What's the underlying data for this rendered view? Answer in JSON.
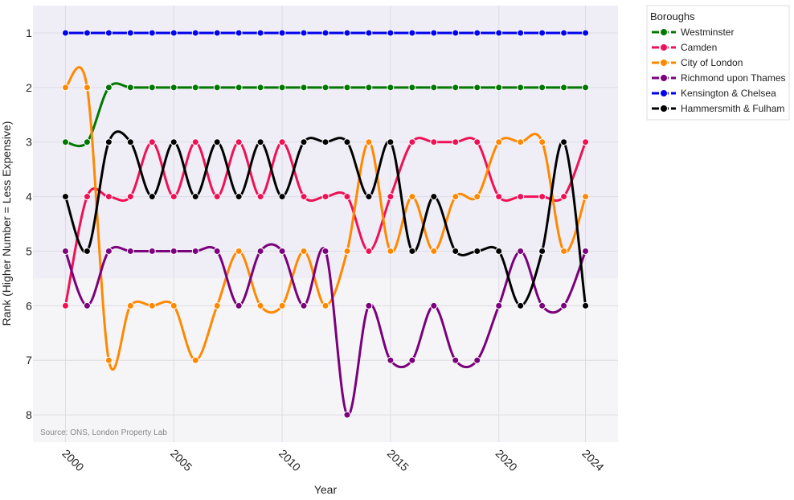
{
  "chart_data": {
    "type": "line",
    "xlabel": "Year",
    "ylabel": "Rank (Higher Number = Less Expensive)",
    "x": [
      2000,
      2001,
      2002,
      2003,
      2004,
      2005,
      2006,
      2007,
      2008,
      2009,
      2010,
      2011,
      2012,
      2013,
      2014,
      2015,
      2016,
      2017,
      2018,
      2019,
      2020,
      2021,
      2022,
      2023,
      2024
    ],
    "xticks": [
      "2000",
      "2005",
      "2010",
      "2015",
      "2020",
      "2024"
    ],
    "yticks": [
      "1",
      "2",
      "3",
      "4",
      "5",
      "6",
      "7",
      "8"
    ],
    "ylim": [
      8.5,
      0.5
    ],
    "y_reversed": true,
    "grid": true,
    "shaded_band": {
      "from_rank": 0.5,
      "to_rank": 5.5,
      "color": "#efeef6"
    },
    "background": "#f5f5f7",
    "source_note": "Source: ONS, London Property Lab",
    "legend": {
      "title": "Boroughs",
      "placement": "right"
    },
    "series": [
      {
        "name": "Westminster",
        "color": "#007700",
        "values": [
          3,
          3,
          2,
          2,
          2,
          2,
          2,
          2,
          2,
          2,
          2,
          2,
          2,
          2,
          2,
          2,
          2,
          2,
          2,
          2,
          2,
          2,
          2,
          2,
          2
        ]
      },
      {
        "name": "Camden",
        "color": "#ee1155",
        "values": [
          6,
          4,
          4,
          4,
          3,
          4,
          3,
          4,
          3,
          4,
          3,
          4,
          4,
          4,
          5,
          4,
          3,
          3,
          3,
          3,
          4,
          4,
          4,
          4,
          3
        ]
      },
      {
        "name": "City of London",
        "color": "#ff8800",
        "values": [
          2,
          2,
          7,
          6,
          6,
          6,
          7,
          6,
          5,
          6,
          6,
          5,
          6,
          5,
          3,
          5,
          4,
          5,
          4,
          4,
          3,
          3,
          3,
          5,
          4
        ]
      },
      {
        "name": "Richmond upon Thames",
        "color": "#7b007b",
        "values": [
          5,
          6,
          5,
          5,
          5,
          5,
          5,
          5,
          6,
          5,
          5,
          6,
          5,
          8,
          6,
          7,
          7,
          6,
          7,
          7,
          6,
          5,
          6,
          6,
          5
        ]
      },
      {
        "name": "Kensington & Chelsea",
        "color": "#0000ee",
        "values": [
          1,
          1,
          1,
          1,
          1,
          1,
          1,
          1,
          1,
          1,
          1,
          1,
          1,
          1,
          1,
          1,
          1,
          1,
          1,
          1,
          1,
          1,
          1,
          1,
          1
        ]
      },
      {
        "name": "Hammersmith & Fulham",
        "color": "#000000",
        "values": [
          4,
          5,
          3,
          3,
          4,
          3,
          4,
          3,
          4,
          3,
          4,
          3,
          3,
          3,
          4,
          3,
          5,
          4,
          5,
          5,
          5,
          6,
          5,
          3,
          6
        ]
      }
    ]
  }
}
